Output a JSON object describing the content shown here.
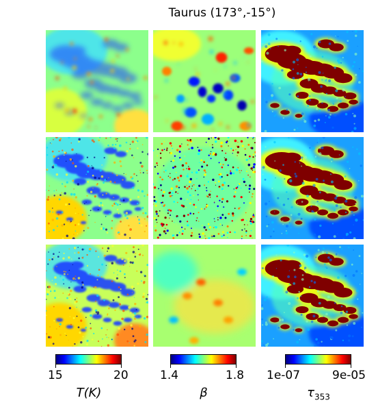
{
  "figure": {
    "title": "Taurus (173°,-15°)"
  },
  "chart_data": {
    "type": "heatmap",
    "title": "Taurus (173°,-15°)",
    "layout": "3 rows x 3 columns of image maps",
    "colormap": "jet",
    "columns": [
      {
        "quantity": "T(K)",
        "label_main": "T",
        "label_paren": "(K)",
        "range": [
          15,
          20
        ],
        "tick_labels": [
          "15",
          "20"
        ]
      },
      {
        "quantity": "β",
        "label_main": "β",
        "range": [
          1.4,
          1.8
        ],
        "tick_labels": [
          "1.4",
          "1.8"
        ]
      },
      {
        "quantity": "τ353",
        "label_main": "τ",
        "label_sub": "353",
        "range": [
          1e-07,
          9e-05
        ],
        "tick_labels": [
          "1e-07",
          "9e-05"
        ]
      }
    ],
    "rows": 3
  },
  "colors": {
    "jet": [
      "#00007f",
      "#0000ff",
      "#007fff",
      "#00ffff",
      "#7fff7f",
      "#ffff00",
      "#ff7f00",
      "#ff0000",
      "#7f0000"
    ]
  }
}
